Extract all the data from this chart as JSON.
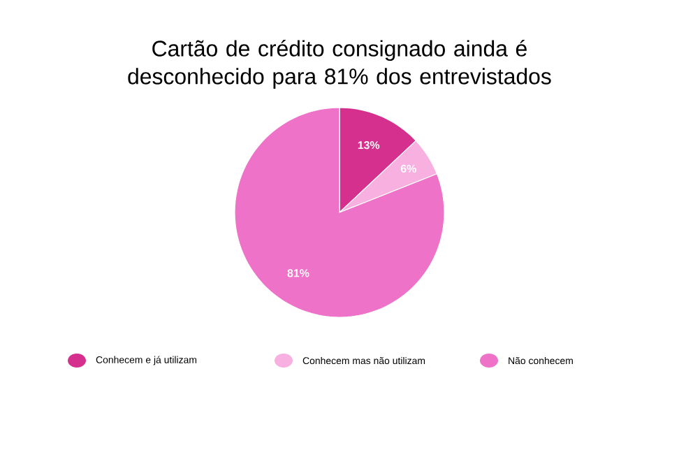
{
  "chart_data": {
    "type": "pie",
    "title": "Cartão de crédito consignado ainda é desconhecido para 81% dos entrevistados",
    "categories": [
      "Conhecem e já utilizam",
      "Conhecem mas não utilizam",
      "Não conhecem"
    ],
    "values": [
      13,
      6,
      81
    ],
    "value_labels": [
      "13%",
      "6%",
      "81%"
    ],
    "colors": [
      "#d6308e",
      "#f7b0e0",
      "#ee72c8"
    ],
    "legend": "bottom"
  }
}
